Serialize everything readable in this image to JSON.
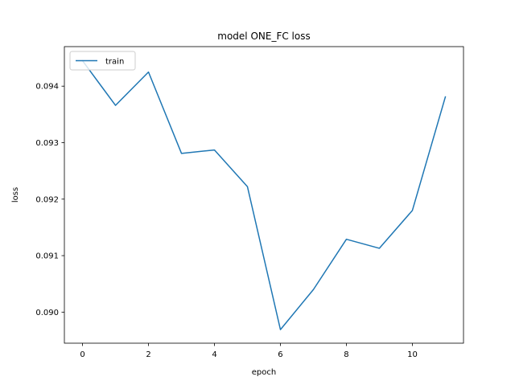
{
  "chart_data": {
    "type": "line",
    "title": "model ONE_FC loss",
    "xlabel": "epoch",
    "ylabel": "loss",
    "x": [
      0,
      1,
      2,
      3,
      4,
      5,
      6,
      7,
      8,
      9,
      10,
      11
    ],
    "series": [
      {
        "name": "train",
        "color": "#1f77b4",
        "values": [
          0.09445,
          0.09366,
          0.09425,
          0.09281,
          0.09287,
          0.09222,
          0.08969,
          0.0904,
          0.09129,
          0.09113,
          0.0918,
          0.09381
        ]
      }
    ],
    "xlim": [
      -0.55,
      11.55
    ],
    "ylim": [
      0.08945,
      0.0947
    ],
    "xticks": [
      0,
      2,
      4,
      6,
      8,
      10
    ],
    "yticks": [
      0.09,
      0.091,
      0.092,
      0.093,
      0.094
    ],
    "xtick_labels": [
      "0",
      "2",
      "4",
      "6",
      "8",
      "10"
    ],
    "ytick_labels": [
      "0.090",
      "0.091",
      "0.092",
      "0.093",
      "0.094"
    ],
    "grid": false,
    "legend_position": "upper-left"
  }
}
